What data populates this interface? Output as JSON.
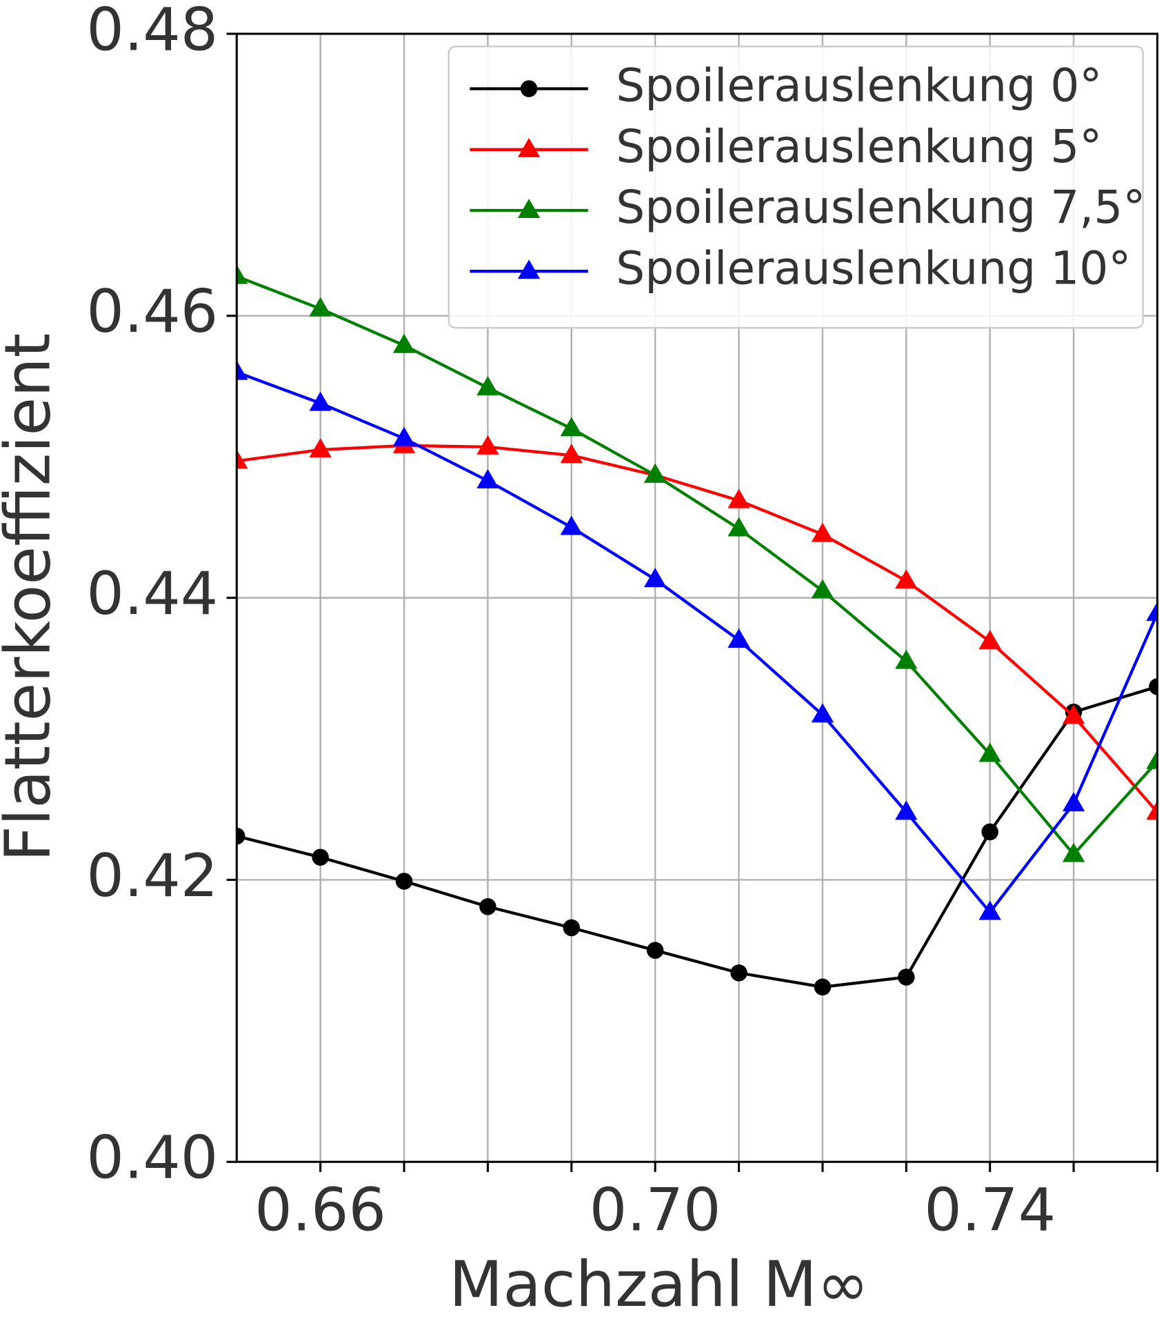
{
  "chart_data": {
    "type": "line",
    "x_label": "Machzahl M∞",
    "y_label": "Flatterkoeffizient",
    "x": [
      0.65,
      0.66,
      0.67,
      0.68,
      0.69,
      0.7,
      0.71,
      0.72,
      0.73,
      0.74,
      0.75,
      0.76
    ],
    "series": [
      {
        "name": "Spoilerauslenkung 0°",
        "color": "#000000",
        "marker": "circle",
        "values": [
          0.4231,
          0.4216,
          0.4199,
          0.4181,
          0.4166,
          0.415,
          0.4134,
          0.4124,
          0.4131,
          0.4234,
          0.4319,
          0.4337
        ]
      },
      {
        "name": "Spoilerauslenkung 5°",
        "color": "#ff0000",
        "marker": "triangle",
        "values": [
          0.4497,
          0.4505,
          0.4508,
          0.4507,
          0.4501,
          0.4487,
          0.4469,
          0.4445,
          0.4412,
          0.4369,
          0.4316,
          0.4248
        ]
      },
      {
        "name": "Spoilerauslenkung 7,5°",
        "color": "#008000",
        "marker": "triangle",
        "values": [
          0.4628,
          0.4605,
          0.4579,
          0.4549,
          0.452,
          0.4487,
          0.4449,
          0.4405,
          0.4355,
          0.4289,
          0.4218,
          0.4284
        ]
      },
      {
        "name": "Spoilerauslenkung 10°",
        "color": "#0000ff",
        "marker": "triangle",
        "values": [
          0.456,
          0.4538,
          0.4513,
          0.4483,
          0.445,
          0.4413,
          0.437,
          0.4317,
          0.4248,
          0.4177,
          0.4254,
          0.4389
        ]
      }
    ],
    "xlim": [
      0.65,
      0.76
    ],
    "ylim": [
      0.4,
      0.48
    ],
    "xticks": [
      {
        "value": 0.66,
        "label": "0.66"
      },
      {
        "value": 0.7,
        "label": "0.70"
      },
      {
        "value": 0.74,
        "label": "0.74"
      }
    ],
    "xminorticks": [
      0.67,
      0.68,
      0.69,
      0.71,
      0.72,
      0.73,
      0.75,
      0.76
    ],
    "yticks": [
      {
        "value": 0.4,
        "label": "0.40"
      },
      0.42,
      0.44,
      0.46,
      0.48
    ],
    "grid": true,
    "legend": "upper right"
  }
}
